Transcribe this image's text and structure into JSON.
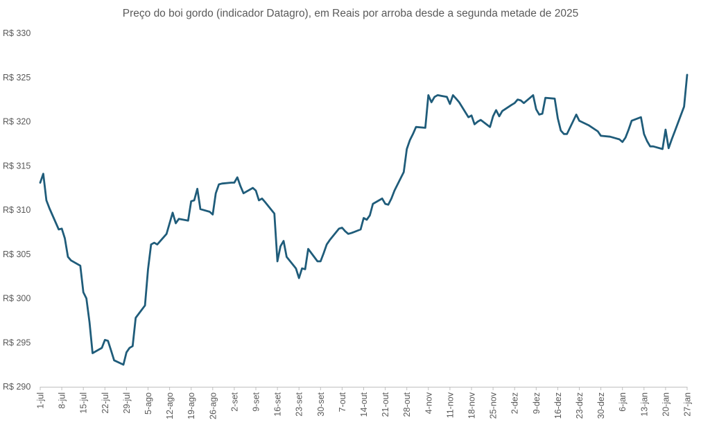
{
  "chart_data": {
    "type": "line",
    "title": "Preço do boi gordo (indicador Datagro), em Reais por arroba desde a segunda metade de 2025",
    "xlabel": "",
    "ylabel": "",
    "ylim": [
      290,
      330
    ],
    "y_ticks": [
      "R$ 290",
      "R$ 295",
      "R$ 300",
      "R$ 305",
      "R$ 310",
      "R$ 315",
      "R$ 320",
      "R$ 325",
      "R$ 330"
    ],
    "y_tick_values": [
      290,
      295,
      300,
      305,
      310,
      315,
      320,
      325,
      330
    ],
    "x_ticks": [
      "1-jul",
      "8-jul",
      "15-jul",
      "22-jul",
      "29-jul",
      "5-ago",
      "12-ago",
      "19-ago",
      "26-ago",
      "2-set",
      "9-set",
      "16-set",
      "23-set",
      "30-set",
      "7-out",
      "14-out",
      "21-out",
      "28-out",
      "4-nov",
      "11-nov",
      "18-nov",
      "25-nov",
      "2-dez",
      "9-dez",
      "16-dez",
      "23-dez",
      "30-dez",
      "6-jan",
      "13-jan",
      "20-jan",
      "27-jan"
    ],
    "x_tick_dates": [
      "2025-07-01",
      "2025-07-08",
      "2025-07-15",
      "2025-07-22",
      "2025-07-29",
      "2025-08-05",
      "2025-08-12",
      "2025-08-19",
      "2025-08-26",
      "2025-09-02",
      "2025-09-09",
      "2025-09-16",
      "2025-09-23",
      "2025-09-30",
      "2025-10-07",
      "2025-10-14",
      "2025-10-21",
      "2025-10-28",
      "2025-11-04",
      "2025-11-11",
      "2025-11-18",
      "2025-11-25",
      "2025-12-02",
      "2025-12-09",
      "2025-12-16",
      "2025-12-23",
      "2025-12-30",
      "2026-01-06",
      "2026-01-13",
      "2026-01-20",
      "2026-01-27"
    ],
    "grid": false,
    "line_color": "#1f5c7a",
    "series": [
      {
        "x": [
          "2025-07-01",
          "2025-07-02",
          "2025-07-03",
          "2025-07-04",
          "2025-07-07",
          "2025-07-08",
          "2025-07-09",
          "2025-07-10",
          "2025-07-11",
          "2025-07-14",
          "2025-07-15",
          "2025-07-16",
          "2025-07-17",
          "2025-07-18",
          "2025-07-21",
          "2025-07-22",
          "2025-07-23",
          "2025-07-24",
          "2025-07-25",
          "2025-07-28",
          "2025-07-29",
          "2025-07-30",
          "2025-07-31",
          "2025-08-01",
          "2025-08-04",
          "2025-08-05",
          "2025-08-06",
          "2025-08-07",
          "2025-08-08",
          "2025-08-11",
          "2025-08-12",
          "2025-08-13",
          "2025-08-14",
          "2025-08-15",
          "2025-08-18",
          "2025-08-19",
          "2025-08-20",
          "2025-08-21",
          "2025-08-22",
          "2025-08-25",
          "2025-08-26",
          "2025-08-27",
          "2025-08-28",
          "2025-08-29",
          "2025-09-01",
          "2025-09-02",
          "2025-09-03",
          "2025-09-04",
          "2025-09-05",
          "2025-09-08",
          "2025-09-09",
          "2025-09-10",
          "2025-09-11",
          "2025-09-12",
          "2025-09-15",
          "2025-09-16",
          "2025-09-17",
          "2025-09-18",
          "2025-09-19",
          "2025-09-22",
          "2025-09-23",
          "2025-09-24",
          "2025-09-25",
          "2025-09-26",
          "2025-09-29",
          "2025-09-30",
          "2025-10-01",
          "2025-10-02",
          "2025-10-03",
          "2025-10-06",
          "2025-10-07",
          "2025-10-08",
          "2025-10-09",
          "2025-10-10",
          "2025-10-13",
          "2025-10-14",
          "2025-10-15",
          "2025-10-16",
          "2025-10-17",
          "2025-10-20",
          "2025-10-21",
          "2025-10-22",
          "2025-10-23",
          "2025-10-24",
          "2025-10-27",
          "2025-10-28",
          "2025-10-29",
          "2025-10-30",
          "2025-10-31",
          "2025-11-03",
          "2025-11-04",
          "2025-11-05",
          "2025-11-06",
          "2025-11-07",
          "2025-11-10",
          "2025-11-11",
          "2025-11-12",
          "2025-11-13",
          "2025-11-14",
          "2025-11-17",
          "2025-11-18",
          "2025-11-19",
          "2025-11-20",
          "2025-11-21",
          "2025-11-24",
          "2025-11-25",
          "2025-11-26",
          "2025-11-27",
          "2025-11-28",
          "2025-12-01",
          "2025-12-02",
          "2025-12-03",
          "2025-12-04",
          "2025-12-05",
          "2025-12-08",
          "2025-12-09",
          "2025-12-10",
          "2025-12-11",
          "2025-12-12",
          "2025-12-15",
          "2025-12-16",
          "2025-12-17",
          "2025-12-18",
          "2025-12-19",
          "2025-12-22",
          "2025-12-23",
          "2025-12-26",
          "2025-12-29",
          "2025-12-30",
          "2026-01-02",
          "2026-01-05",
          "2026-01-06",
          "2026-01-07",
          "2026-01-08",
          "2026-01-09",
          "2026-01-12",
          "2026-01-13",
          "2026-01-14",
          "2026-01-15",
          "2026-01-16",
          "2026-01-19",
          "2026-01-20",
          "2026-01-21",
          "2026-01-22",
          "2026-01-23",
          "2026-01-26",
          "2026-01-27"
        ],
        "values": [
          313.1,
          314.1,
          311.1,
          310.2,
          307.8,
          307.9,
          306.8,
          304.7,
          304.3,
          303.7,
          300.7,
          300.0,
          297.3,
          293.8,
          294.4,
          295.3,
          295.2,
          294.1,
          293.0,
          292.5,
          293.9,
          294.4,
          294.6,
          297.8,
          299.2,
          303.3,
          306.1,
          306.3,
          306.1,
          307.3,
          308.5,
          309.7,
          308.5,
          309.0,
          308.8,
          311.0,
          311.1,
          312.4,
          310.1,
          309.8,
          309.5,
          311.9,
          312.9,
          313.0,
          313.1,
          313.1,
          313.7,
          312.7,
          311.9,
          312.5,
          312.2,
          311.1,
          311.3,
          310.9,
          309.6,
          304.2,
          305.9,
          306.5,
          304.7,
          303.4,
          302.3,
          303.4,
          303.3,
          305.6,
          304.2,
          304.2,
          305.1,
          306.1,
          306.6,
          307.9,
          308.0,
          307.6,
          307.3,
          307.4,
          307.8,
          309.1,
          308.9,
          309.4,
          310.7,
          311.3,
          310.7,
          310.6,
          311.3,
          312.2,
          314.3,
          316.9,
          317.9,
          318.6,
          319.4,
          319.3,
          323.0,
          322.2,
          322.8,
          323.0,
          322.8,
          322.0,
          323.0,
          322.6,
          322.2,
          320.5,
          320.7,
          319.7,
          320.0,
          320.2,
          319.4,
          320.6,
          321.3,
          320.6,
          321.2,
          321.9,
          322.1,
          322.5,
          322.4,
          322.1,
          323.0,
          321.4,
          320.8,
          320.9,
          322.7,
          322.6,
          320.4,
          319.0,
          318.6,
          318.6,
          320.8,
          320.1,
          319.6,
          318.9,
          318.4,
          318.3,
          318.0,
          317.7,
          318.2,
          319.1,
          320.1,
          320.5,
          318.6,
          317.8,
          317.2,
          317.2,
          316.9,
          319.1,
          317.0,
          318.0,
          318.9,
          321.7,
          325.3
        ]
      }
    ]
  }
}
